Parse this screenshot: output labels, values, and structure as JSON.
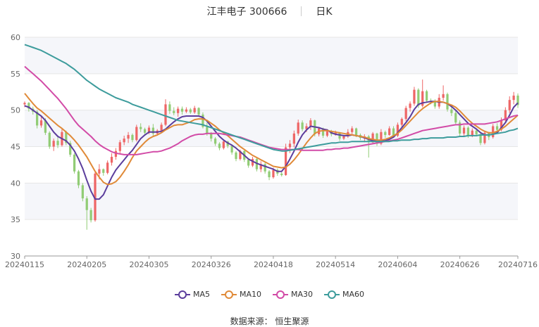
{
  "header": {
    "stock_name": "江丰电子 300666",
    "period": "日K"
  },
  "source": {
    "label": "数据来源：",
    "provider": "恒生聚源"
  },
  "colors": {
    "up": "#ee6666",
    "down": "#91cc75",
    "MA5": "#5b3d9c",
    "MA10": "#e08a38",
    "MA30": "#d24ba7",
    "MA60": "#3d9c9c"
  },
  "chart_data": {
    "type": "candlestick",
    "ylim": [
      30,
      60
    ],
    "yticks": [
      30,
      35,
      40,
      45,
      50,
      55,
      60
    ],
    "grid": true,
    "legend_position": "bottom-center",
    "xtick_labels": [
      {
        "index": 0,
        "label": "20240115"
      },
      {
        "index": 15,
        "label": "20240205"
      },
      {
        "index": 30,
        "label": "20240305"
      },
      {
        "index": 45,
        "label": "20240326"
      },
      {
        "index": 60,
        "label": "20240418"
      },
      {
        "index": 75,
        "label": "20240514"
      },
      {
        "index": 90,
        "label": "20240604"
      },
      {
        "index": 105,
        "label": "20240626"
      },
      {
        "index": 119,
        "label": "20240716"
      }
    ],
    "candles": [
      [
        50.8,
        51.2,
        50.4,
        51.0
      ],
      [
        51.0,
        51.1,
        49.8,
        50.2
      ],
      [
        50.2,
        50.5,
        49.4,
        49.8
      ],
      [
        49.8,
        50.0,
        47.5,
        47.9
      ],
      [
        47.9,
        49.2,
        47.6,
        48.6
      ],
      [
        48.6,
        48.9,
        46.6,
        46.9
      ],
      [
        46.9,
        47.1,
        44.7,
        45.0
      ],
      [
        45.0,
        46.1,
        44.4,
        45.8
      ],
      [
        45.8,
        46.3,
        44.8,
        45.2
      ],
      [
        45.2,
        47.5,
        45.0,
        47.0
      ],
      [
        47.0,
        47.2,
        45.2,
        45.5
      ],
      [
        45.5,
        45.8,
        43.6,
        43.9
      ],
      [
        43.9,
        44.1,
        41.3,
        41.6
      ],
      [
        41.6,
        41.8,
        39.3,
        39.7
      ],
      [
        39.7,
        40.0,
        37.5,
        37.9
      ],
      [
        37.9,
        38.2,
        33.6,
        36.3
      ],
      [
        36.3,
        36.6,
        34.6,
        34.9
      ],
      [
        34.9,
        41.7,
        34.7,
        41.3
      ],
      [
        41.3,
        42.6,
        40.5,
        41.9
      ],
      [
        41.9,
        42.0,
        41.0,
        41.4
      ],
      [
        41.4,
        43.1,
        41.2,
        42.8
      ],
      [
        42.8,
        44.1,
        42.4,
        43.6
      ],
      [
        43.6,
        44.8,
        43.2,
        44.4
      ],
      [
        44.4,
        45.9,
        44.1,
        45.6
      ],
      [
        45.6,
        46.5,
        45.2,
        46.1
      ],
      [
        46.1,
        47.0,
        45.5,
        46.6
      ],
      [
        46.6,
        46.8,
        45.6,
        45.9
      ],
      [
        45.9,
        48.0,
        45.7,
        47.7
      ],
      [
        47.7,
        48.2,
        47.0,
        47.4
      ],
      [
        47.4,
        47.6,
        46.6,
        46.9
      ],
      [
        46.9,
        47.9,
        46.7,
        47.6
      ],
      [
        47.6,
        48.1,
        46.5,
        46.8
      ],
      [
        46.8,
        47.4,
        46.5,
        47.2
      ],
      [
        47.2,
        48.3,
        47.0,
        48.0
      ],
      [
        48.0,
        51.5,
        47.8,
        50.8
      ],
      [
        50.8,
        51.2,
        49.5,
        49.9
      ],
      [
        49.9,
        50.4,
        49.3,
        49.6
      ],
      [
        49.6,
        50.5,
        49.1,
        50.2
      ],
      [
        50.2,
        50.5,
        49.4,
        49.8
      ],
      [
        49.8,
        50.4,
        49.6,
        50.1
      ],
      [
        50.1,
        50.3,
        49.5,
        49.7
      ],
      [
        49.7,
        50.6,
        49.5,
        50.3
      ],
      [
        50.3,
        50.4,
        49.2,
        49.4
      ],
      [
        49.4,
        49.7,
        47.5,
        47.7
      ],
      [
        47.7,
        48.3,
        46.5,
        46.8
      ],
      [
        46.8,
        47.0,
        45.7,
        46.1
      ],
      [
        46.1,
        46.3,
        45.1,
        45.4
      ],
      [
        45.4,
        45.6,
        44.5,
        44.8
      ],
      [
        44.8,
        46.0,
        44.6,
        45.7
      ],
      [
        45.7,
        45.8,
        44.8,
        45.1
      ],
      [
        45.1,
        45.3,
        43.9,
        44.2
      ],
      [
        44.2,
        44.4,
        43.0,
        43.3
      ],
      [
        43.3,
        44.6,
        43.1,
        44.4
      ],
      [
        44.4,
        44.5,
        42.9,
        43.2
      ],
      [
        43.2,
        43.4,
        42.1,
        42.4
      ],
      [
        42.4,
        43.6,
        42.2,
        43.3
      ],
      [
        43.3,
        43.5,
        41.6,
        41.9
      ],
      [
        41.9,
        43.0,
        41.5,
        42.6
      ],
      [
        42.6,
        42.8,
        41.3,
        41.6
      ],
      [
        41.6,
        41.8,
        40.4,
        40.8
      ],
      [
        40.8,
        42.1,
        40.6,
        41.8
      ],
      [
        41.8,
        42.0,
        41.0,
        41.3
      ],
      [
        41.3,
        41.5,
        40.9,
        41.1
      ],
      [
        41.1,
        45.4,
        41.0,
        44.9
      ],
      [
        44.9,
        45.9,
        44.1,
        45.4
      ],
      [
        45.4,
        47.2,
        44.9,
        46.8
      ],
      [
        46.8,
        48.7,
        46.5,
        48.3
      ],
      [
        48.3,
        48.6,
        47.1,
        47.4
      ],
      [
        47.4,
        48.2,
        47.0,
        47.8
      ],
      [
        47.8,
        48.9,
        47.3,
        48.6
      ],
      [
        48.6,
        48.7,
        46.4,
        46.7
      ],
      [
        46.7,
        47.7,
        46.4,
        47.5
      ],
      [
        47.5,
        47.6,
        46.2,
        46.5
      ],
      [
        46.5,
        47.4,
        46.3,
        47.1
      ],
      [
        47.1,
        47.3,
        46.4,
        46.7
      ],
      [
        46.7,
        47.2,
        46.5,
        46.9
      ],
      [
        46.9,
        47.0,
        45.8,
        46.1
      ],
      [
        46.1,
        46.6,
        45.9,
        46.4
      ],
      [
        46.4,
        47.4,
        46.2,
        47.0
      ],
      [
        47.0,
        47.8,
        46.6,
        47.5
      ],
      [
        47.5,
        47.6,
        46.3,
        46.6
      ],
      [
        46.6,
        46.8,
        45.9,
        46.2
      ],
      [
        46.2,
        46.7,
        45.6,
        46.4
      ],
      [
        46.4,
        46.6,
        43.5,
        45.6
      ],
      [
        45.6,
        47.0,
        45.4,
        46.8
      ],
      [
        46.8,
        46.9,
        45.1,
        45.4
      ],
      [
        45.4,
        47.4,
        45.2,
        47.0
      ],
      [
        47.0,
        47.2,
        46.2,
        46.6
      ],
      [
        46.6,
        47.8,
        46.5,
        47.5
      ],
      [
        47.5,
        47.8,
        46.2,
        46.5
      ],
      [
        46.5,
        48.3,
        46.3,
        48.0
      ],
      [
        48.0,
        49.0,
        47.6,
        48.8
      ],
      [
        48.8,
        50.6,
        48.5,
        50.3
      ],
      [
        50.3,
        51.2,
        49.8,
        50.9
      ],
      [
        50.9,
        53.2,
        50.6,
        52.8
      ],
      [
        52.8,
        53.0,
        50.3,
        50.6
      ],
      [
        50.6,
        54.2,
        50.4,
        52.6
      ],
      [
        52.6,
        52.8,
        51.0,
        51.3
      ],
      [
        51.3,
        51.6,
        50.8,
        51.1
      ],
      [
        51.1,
        51.5,
        50.2,
        50.5
      ],
      [
        50.5,
        52.2,
        50.2,
        51.7
      ],
      [
        51.7,
        53.4,
        51.3,
        52.2
      ],
      [
        52.2,
        52.4,
        49.8,
        50.1
      ],
      [
        50.1,
        50.5,
        49.2,
        49.6
      ],
      [
        49.6,
        50.0,
        48.1,
        48.3
      ],
      [
        48.3,
        48.6,
        46.3,
        46.8
      ],
      [
        46.8,
        47.9,
        46.4,
        47.6
      ],
      [
        47.6,
        47.8,
        46.2,
        46.5
      ],
      [
        46.5,
        47.5,
        46.3,
        47.2
      ],
      [
        47.2,
        47.5,
        46.4,
        46.7
      ],
      [
        46.7,
        46.9,
        45.2,
        45.5
      ],
      [
        45.5,
        47.2,
        45.3,
        46.9
      ],
      [
        46.9,
        47.0,
        45.9,
        46.3
      ],
      [
        46.3,
        48.1,
        46.1,
        47.8
      ],
      [
        47.8,
        48.2,
        46.9,
        47.3
      ],
      [
        47.3,
        49.0,
        47.1,
        48.6
      ],
      [
        48.6,
        50.4,
        48.3,
        50.0
      ],
      [
        50.0,
        51.9,
        49.6,
        51.4
      ],
      [
        51.4,
        52.5,
        50.8,
        52.0
      ],
      [
        52.0,
        52.3,
        50.3,
        50.7
      ]
    ],
    "series": [
      {
        "name": "MA5",
        "values": [
          50.6,
          50.4,
          50.0,
          49.6,
          49.2,
          48.6,
          47.8,
          47.0,
          46.4,
          46.1,
          45.8,
          45.2,
          44.4,
          43.3,
          42.0,
          40.4,
          38.9,
          37.8,
          37.8,
          38.4,
          39.6,
          40.8,
          41.8,
          42.5,
          43.2,
          43.9,
          44.5,
          45.3,
          46.1,
          46.6,
          47.0,
          47.0,
          47.0,
          47.1,
          47.4,
          47.9,
          48.4,
          48.8,
          49.1,
          49.2,
          49.2,
          49.2,
          49.2,
          49.0,
          48.5,
          47.8,
          47.1,
          46.4,
          45.9,
          45.5,
          45.2,
          44.8,
          44.3,
          43.8,
          43.3,
          43.0,
          42.7,
          42.5,
          42.3,
          42.1,
          41.9,
          41.6,
          41.6,
          42.3,
          43.3,
          44.4,
          45.6,
          46.6,
          47.3,
          47.8,
          47.7,
          47.6,
          47.4,
          47.3,
          46.9,
          46.7,
          46.6,
          46.5,
          46.5,
          46.6,
          46.5,
          46.4,
          46.2,
          46.0,
          45.8,
          45.8,
          45.8,
          45.8,
          46.0,
          46.3,
          46.9,
          47.6,
          48.3,
          49.1,
          50.1,
          50.8,
          51.0,
          51.1,
          51.2,
          51.2,
          51.1,
          51.1,
          50.9,
          50.5,
          50.0,
          49.4,
          48.8,
          48.2,
          47.8,
          47.4,
          46.9,
          46.6,
          46.6,
          46.7,
          46.9,
          47.6,
          48.3,
          49.3,
          50.4,
          51.0
        ]
      },
      {
        "name": "MA10",
        "values": [
          52.3,
          51.6,
          50.9,
          50.3,
          49.9,
          49.4,
          48.9,
          48.4,
          47.9,
          47.5,
          47.0,
          46.5,
          45.9,
          45.2,
          44.4,
          43.6,
          42.6,
          41.6,
          40.8,
          40.1,
          39.8,
          39.9,
          40.2,
          40.8,
          41.6,
          42.5,
          43.5,
          44.4,
          45.0,
          45.6,
          46.1,
          46.4,
          46.6,
          46.9,
          47.3,
          47.6,
          47.9,
          48.0,
          48.0,
          48.2,
          48.4,
          48.7,
          48.8,
          48.8,
          48.6,
          48.2,
          47.8,
          47.3,
          46.9,
          46.5,
          46.0,
          45.5,
          45.0,
          44.6,
          44.2,
          43.8,
          43.5,
          43.2,
          42.9,
          42.6,
          42.3,
          42.2,
          42.1,
          42.2,
          42.6,
          43.2,
          43.9,
          44.7,
          45.5,
          46.2,
          46.8,
          47.1,
          47.2,
          47.2,
          47.1,
          47.0,
          46.9,
          46.8,
          46.7,
          46.6,
          46.5,
          46.4,
          46.3,
          46.1,
          46.0,
          45.9,
          45.9,
          46.0,
          46.2,
          46.5,
          46.8,
          47.3,
          47.9,
          48.5,
          49.1,
          49.7,
          50.2,
          50.6,
          51.0,
          51.2,
          51.2,
          51.1,
          50.9,
          50.7,
          50.4,
          49.9,
          49.3,
          48.7,
          48.2,
          47.8,
          47.4,
          47.1,
          46.9,
          46.9,
          47.1,
          47.4,
          47.8,
          48.3,
          48.8,
          49.3
        ]
      },
      {
        "name": "MA30",
        "values": [
          56.0,
          55.5,
          55.0,
          54.5,
          54.0,
          53.4,
          52.8,
          52.2,
          51.6,
          50.9,
          50.2,
          49.4,
          48.6,
          47.9,
          47.4,
          46.9,
          46.4,
          45.8,
          45.3,
          44.9,
          44.6,
          44.3,
          44.1,
          44.0,
          43.9,
          43.9,
          43.9,
          43.9,
          44.0,
          44.1,
          44.2,
          44.3,
          44.3,
          44.4,
          44.6,
          44.8,
          45.1,
          45.4,
          45.8,
          46.1,
          46.4,
          46.6,
          46.7,
          46.7,
          46.8,
          46.8,
          46.8,
          46.8,
          46.7,
          46.6,
          46.5,
          46.4,
          46.3,
          46.1,
          45.9,
          45.7,
          45.5,
          45.3,
          45.1,
          44.9,
          44.8,
          44.7,
          44.6,
          44.6,
          44.6,
          44.6,
          44.6,
          44.5,
          44.5,
          44.5,
          44.5,
          44.5,
          44.5,
          44.6,
          44.6,
          44.7,
          44.7,
          44.8,
          44.8,
          44.9,
          45.0,
          45.1,
          45.2,
          45.3,
          45.4,
          45.5,
          45.6,
          45.7,
          45.8,
          45.9,
          46.0,
          46.2,
          46.4,
          46.6,
          46.8,
          47.0,
          47.2,
          47.3,
          47.4,
          47.5,
          47.6,
          47.7,
          47.8,
          47.9,
          48.0,
          48.0,
          48.1,
          48.1,
          48.1,
          48.1,
          48.1,
          48.1,
          48.2,
          48.3,
          48.4,
          48.6,
          48.8,
          49.0,
          49.2,
          49.3
        ]
      },
      {
        "name": "MA60",
        "values": [
          59.0,
          58.8,
          58.6,
          58.4,
          58.2,
          57.9,
          57.6,
          57.3,
          57.0,
          56.7,
          56.4,
          56.0,
          55.6,
          55.1,
          54.6,
          54.1,
          53.7,
          53.3,
          52.9,
          52.6,
          52.3,
          52.0,
          51.7,
          51.5,
          51.3,
          51.1,
          50.8,
          50.6,
          50.4,
          50.2,
          50.0,
          49.8,
          49.6,
          49.4,
          49.2,
          49.0,
          48.8,
          48.6,
          48.5,
          48.4,
          48.3,
          48.2,
          48.1,
          48.0,
          47.8,
          47.6,
          47.4,
          47.2,
          47.0,
          46.8,
          46.6,
          46.4,
          46.2,
          46.0,
          45.8,
          45.6,
          45.4,
          45.2,
          45.0,
          44.8,
          44.6,
          44.5,
          44.4,
          44.4,
          44.5,
          44.6,
          44.7,
          44.8,
          44.9,
          45.0,
          45.1,
          45.2,
          45.3,
          45.4,
          45.5,
          45.5,
          45.6,
          45.6,
          45.6,
          45.7,
          45.7,
          45.7,
          45.7,
          45.7,
          45.7,
          45.7,
          45.7,
          45.7,
          45.7,
          45.8,
          45.8,
          45.9,
          45.9,
          45.9,
          46.0,
          46.0,
          46.1,
          46.1,
          46.2,
          46.2,
          46.2,
          46.2,
          46.3,
          46.3,
          46.3,
          46.4,
          46.4,
          46.5,
          46.5,
          46.5,
          46.6,
          46.6,
          46.6,
          46.7,
          46.8,
          46.9,
          47.0,
          47.2,
          47.3,
          47.5
        ]
      }
    ]
  }
}
